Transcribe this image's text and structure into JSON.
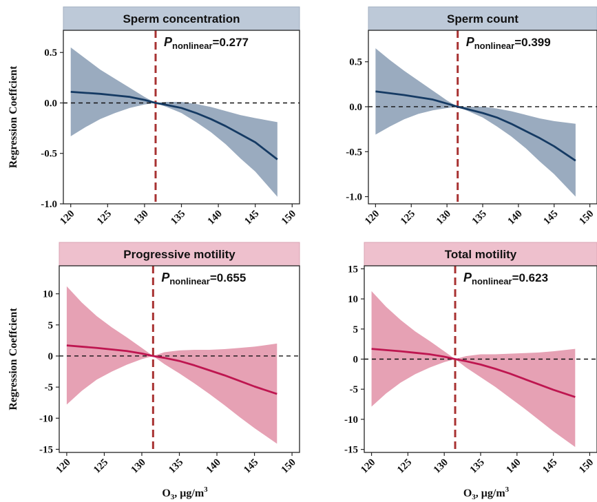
{
  "chart_data": [
    {
      "type": "line",
      "title": "Sperm concentration",
      "ylabel": "Regression Coeffcient",
      "xlabel": "",
      "annotation": {
        "p_symbol": "P",
        "p_sub": "nonlinear",
        "p_value": "=0.277"
      },
      "reference_x": 131.5,
      "xlim": [
        119,
        151
      ],
      "ylim": [
        -1.0,
        0.72
      ],
      "xticks": [
        120,
        125,
        130,
        135,
        140,
        145,
        150
      ],
      "yticks": [
        0.5,
        0.0,
        -0.5,
        -1.0
      ],
      "ytick_labels": [
        "0.5",
        "0.0",
        "-0.5",
        "-1.0"
      ],
      "x": [
        120,
        122,
        124,
        126,
        128,
        130,
        131.5,
        133,
        135,
        137,
        139,
        141,
        143,
        145,
        148
      ],
      "y": [
        0.11,
        0.1,
        0.09,
        0.075,
        0.06,
        0.03,
        0.0,
        -0.02,
        -0.05,
        -0.1,
        -0.16,
        -0.23,
        -0.31,
        -0.39,
        -0.56
      ],
      "lower": [
        -0.33,
        -0.24,
        -0.16,
        -0.1,
        -0.05,
        -0.015,
        0.0,
        -0.04,
        -0.1,
        -0.19,
        -0.29,
        -0.41,
        -0.55,
        -0.68,
        -0.93
      ],
      "upper": [
        0.55,
        0.44,
        0.33,
        0.24,
        0.15,
        0.06,
        0.0,
        0.01,
        0.01,
        -0.01,
        -0.04,
        -0.08,
        -0.12,
        -0.15,
        -0.19
      ],
      "colors": {
        "line": "#153a63",
        "band": "#9aabbf",
        "ref": "#a83232",
        "strip": "#bdc9d8",
        "strip_border": "#a3b0c2"
      }
    },
    {
      "type": "line",
      "title": "Sperm count",
      "ylabel": "",
      "xlabel": "",
      "annotation": {
        "p_symbol": "P",
        "p_sub": "nonlinear",
        "p_value": "=0.399"
      },
      "reference_x": 131.5,
      "xlim": [
        119,
        151
      ],
      "ylim": [
        -1.08,
        0.85
      ],
      "xticks": [
        120,
        125,
        130,
        135,
        140,
        145,
        150
      ],
      "yticks": [
        0.5,
        0.0,
        -0.5,
        -1.0
      ],
      "ytick_labels": [
        "0.5",
        "0.0",
        "-0.5",
        "-1.0"
      ],
      "x": [
        120,
        122,
        124,
        126,
        128,
        130,
        131.5,
        133,
        135,
        137,
        139,
        141,
        143,
        145,
        148
      ],
      "y": [
        0.17,
        0.15,
        0.13,
        0.105,
        0.08,
        0.035,
        0.0,
        -0.03,
        -0.07,
        -0.12,
        -0.19,
        -0.27,
        -0.35,
        -0.44,
        -0.6
      ],
      "lower": [
        -0.31,
        -0.22,
        -0.14,
        -0.08,
        -0.04,
        -0.015,
        0.0,
        -0.05,
        -0.12,
        -0.22,
        -0.33,
        -0.46,
        -0.61,
        -0.75,
        -1.0
      ],
      "upper": [
        0.65,
        0.52,
        0.4,
        0.29,
        0.18,
        0.07,
        0.0,
        0.0,
        0.0,
        -0.02,
        -0.05,
        -0.09,
        -0.13,
        -0.16,
        -0.19
      ],
      "colors": {
        "line": "#153a63",
        "band": "#9aabbf",
        "ref": "#a83232",
        "strip": "#bdc9d8",
        "strip_border": "#a3b0c2"
      }
    },
    {
      "type": "line",
      "title": "Progressive motility",
      "ylabel": "Regression Coeffcient",
      "xlabel": "O3, μg/m3",
      "annotation": {
        "p_symbol": "P",
        "p_sub": "nonlinear",
        "p_value": "=0.655"
      },
      "reference_x": 131.5,
      "xlim": [
        119,
        151
      ],
      "ylim": [
        -15.5,
        14.5
      ],
      "xticks": [
        120,
        125,
        130,
        135,
        140,
        145,
        150
      ],
      "yticks": [
        10,
        5,
        0,
        -5,
        -10,
        -15
      ],
      "ytick_labels": [
        "10",
        "5",
        "0",
        "-5",
        "-10",
        "-15"
      ],
      "x": [
        120,
        122,
        124,
        126,
        128,
        130,
        131.5,
        133,
        135,
        137,
        139,
        141,
        143,
        145,
        148
      ],
      "y": [
        1.7,
        1.5,
        1.3,
        1.05,
        0.8,
        0.4,
        0.0,
        -0.3,
        -0.8,
        -1.5,
        -2.3,
        -3.1,
        -4.0,
        -4.9,
        -6.1
      ],
      "lower": [
        -7.8,
        -5.6,
        -3.8,
        -2.5,
        -1.4,
        -0.5,
        0.0,
        -1.3,
        -2.8,
        -4.4,
        -6.1,
        -7.9,
        -9.8,
        -11.6,
        -14.1
      ],
      "upper": [
        11.2,
        8.6,
        6.4,
        4.6,
        3.0,
        1.3,
        0.0,
        0.6,
        0.9,
        1.0,
        1.0,
        1.1,
        1.3,
        1.5,
        2.0
      ],
      "colors": {
        "line": "#be1650",
        "band": "#e6a1b4",
        "ref": "#a83232",
        "strip": "#eec0cd",
        "strip_border": "#d9a3b3"
      }
    },
    {
      "type": "line",
      "title": "Total motility",
      "ylabel": "",
      "xlabel": "O3, μg/m3",
      "annotation": {
        "p_symbol": "P",
        "p_sub": "nonlinear",
        "p_value": "=0.623"
      },
      "reference_x": 131.5,
      "xlim": [
        119,
        151
      ],
      "ylim": [
        -15.5,
        15.5
      ],
      "xticks": [
        120,
        125,
        130,
        135,
        140,
        145,
        150
      ],
      "yticks": [
        15,
        10,
        5,
        0,
        -5,
        -10,
        -15
      ],
      "ytick_labels": [
        "15",
        "10",
        "5",
        "0",
        "-5",
        "-10",
        "-15"
      ],
      "x": [
        120,
        122,
        124,
        126,
        128,
        130,
        131.5,
        133,
        135,
        137,
        139,
        141,
        143,
        145,
        148
      ],
      "y": [
        1.7,
        1.5,
        1.3,
        1.05,
        0.8,
        0.4,
        0.0,
        -0.35,
        -0.9,
        -1.6,
        -2.4,
        -3.3,
        -4.2,
        -5.1,
        -6.3
      ],
      "lower": [
        -7.9,
        -5.7,
        -3.9,
        -2.5,
        -1.4,
        -0.5,
        0.0,
        -1.4,
        -3.0,
        -4.6,
        -6.4,
        -8.2,
        -10.1,
        -12.0,
        -14.6
      ],
      "upper": [
        11.3,
        8.7,
        6.5,
        4.6,
        3.0,
        1.3,
        0.0,
        0.5,
        0.8,
        0.8,
        0.9,
        1.0,
        1.1,
        1.3,
        1.7
      ],
      "colors": {
        "line": "#be1650",
        "band": "#e6a1b4",
        "ref": "#a83232",
        "strip": "#eec0cd",
        "strip_border": "#d9a3b3"
      }
    }
  ]
}
